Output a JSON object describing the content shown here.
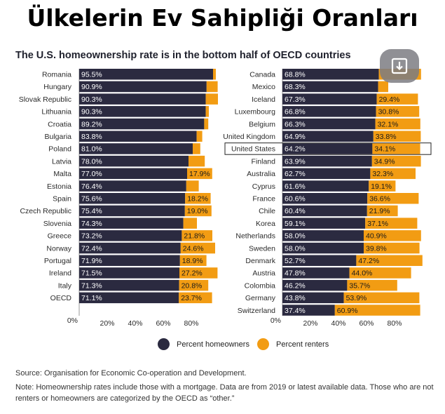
{
  "page": {
    "title": "Ülkelerin Ev Sahipliği Oranları"
  },
  "chart_data": {
    "type": "bar",
    "title": "The U.S. homeownership rate is in the bottom half of OECD countries",
    "x_ticks": [
      "0%",
      "20%",
      "40%",
      "60%",
      "80%"
    ],
    "xlim": [
      0,
      100
    ],
    "legend": [
      "Percent homeowners",
      "Percent renters"
    ],
    "colors": {
      "homeowners": "#2b2a40",
      "renters": "#f29c13",
      "label_dark": "#1a1a1a",
      "label_light": "#ffffff"
    },
    "highlight": "United States",
    "panels": [
      {
        "countries": [
          "Romania",
          "Hungary",
          "Slovak Republic",
          "Lithuania",
          "Croatia",
          "Bulgaria",
          "Poland",
          "Latvia",
          "Malta",
          "Estonia",
          "Spain",
          "Czech Republic",
          "Slovenia",
          "Greece",
          "Norway",
          "Portugal",
          "Ireland",
          "Italy",
          "OECD"
        ],
        "homeowners": [
          95.5,
          90.9,
          90.3,
          90.3,
          89.2,
          83.8,
          81.0,
          78.0,
          77.0,
          76.4,
          75.6,
          75.4,
          74.3,
          73.2,
          72.4,
          71.9,
          71.5,
          71.3,
          71.1
        ],
        "renters": [
          2.0,
          7.9,
          8.7,
          2.2,
          2.9,
          4.0,
          5.4,
          11.6,
          17.9,
          8.9,
          18.2,
          19.0,
          9.7,
          21.8,
          24.6,
          18.9,
          27.2,
          20.8,
          23.7
        ],
        "homeowner_labels": [
          "95.5%",
          "90.9%",
          "90.3%",
          "90.3%",
          "89.2%",
          "83.8%",
          "81.0%",
          "78.0%",
          "77.0%",
          "76.4%",
          "75.6%",
          "75.4%",
          "74.3%",
          "73.2%",
          "72.4%",
          "71.9%",
          "71.5%",
          "71.3%",
          "71.1%"
        ],
        "renter_labels": [
          "",
          "",
          "",
          "",
          "",
          "",
          "",
          "",
          "17.9%",
          "",
          "18.2%",
          "19.0%",
          "",
          "21.8%",
          "24.6%",
          "18.9%",
          "27.2%",
          "20.8%",
          "23.7%"
        ]
      },
      {
        "countries": [
          "Canada",
          "Mexico",
          "Iceland",
          "Luxembourg",
          "Belgium",
          "United Kingdom",
          "United States",
          "Finland",
          "Australia",
          "Cyprus",
          "France",
          "Chile",
          "Korea",
          "Netherlands",
          "Sweden",
          "Denmark",
          "Austria",
          "Colombia",
          "Germany",
          "Switzerland"
        ],
        "homeowners": [
          68.8,
          68.3,
          67.3,
          66.8,
          66.3,
          64.9,
          64.2,
          63.9,
          62.7,
          61.6,
          60.6,
          60.4,
          59.1,
          58.0,
          58.0,
          52.7,
          47.8,
          46.2,
          43.8,
          37.4
        ],
        "renters": [
          30.1,
          7.2,
          29.4,
          30.8,
          32.1,
          33.8,
          34.1,
          34.9,
          32.3,
          19.1,
          36.6,
          21.9,
          37.1,
          40.9,
          39.8,
          47.2,
          44.0,
          35.7,
          53.9,
          60.9
        ],
        "homeowner_labels": [
          "68.8%",
          "68.3%",
          "67.3%",
          "66.8%",
          "66.3%",
          "64.9%",
          "64.2%",
          "63.9%",
          "62.7%",
          "61.6%",
          "60.6%",
          "60.4%",
          "59.1%",
          "58.0%",
          "58.0%",
          "52.7%",
          "47.8%",
          "46.2%",
          "43.8%",
          "37.4%"
        ],
        "renter_labels": [
          "",
          "",
          "29.4%",
          "30.8%",
          "32.1%",
          "33.8%",
          "34.1%",
          "34.9%",
          "32.3%",
          "19.1%",
          "36.6%",
          "21.9%",
          "37.1%",
          "40.9%",
          "39.8%",
          "47.2%",
          "44.0%",
          "35.7%",
          "53.9%",
          "60.9%"
        ]
      }
    ]
  },
  "footer": {
    "source": "Source: Organisation for Economic Co-operation and Development.",
    "note": "Note: Homeownership rates include those with a mortgage. Data are from 2019 or latest available data. Those who are not renters or homeowners are categorized by the OECD as “other.”"
  }
}
